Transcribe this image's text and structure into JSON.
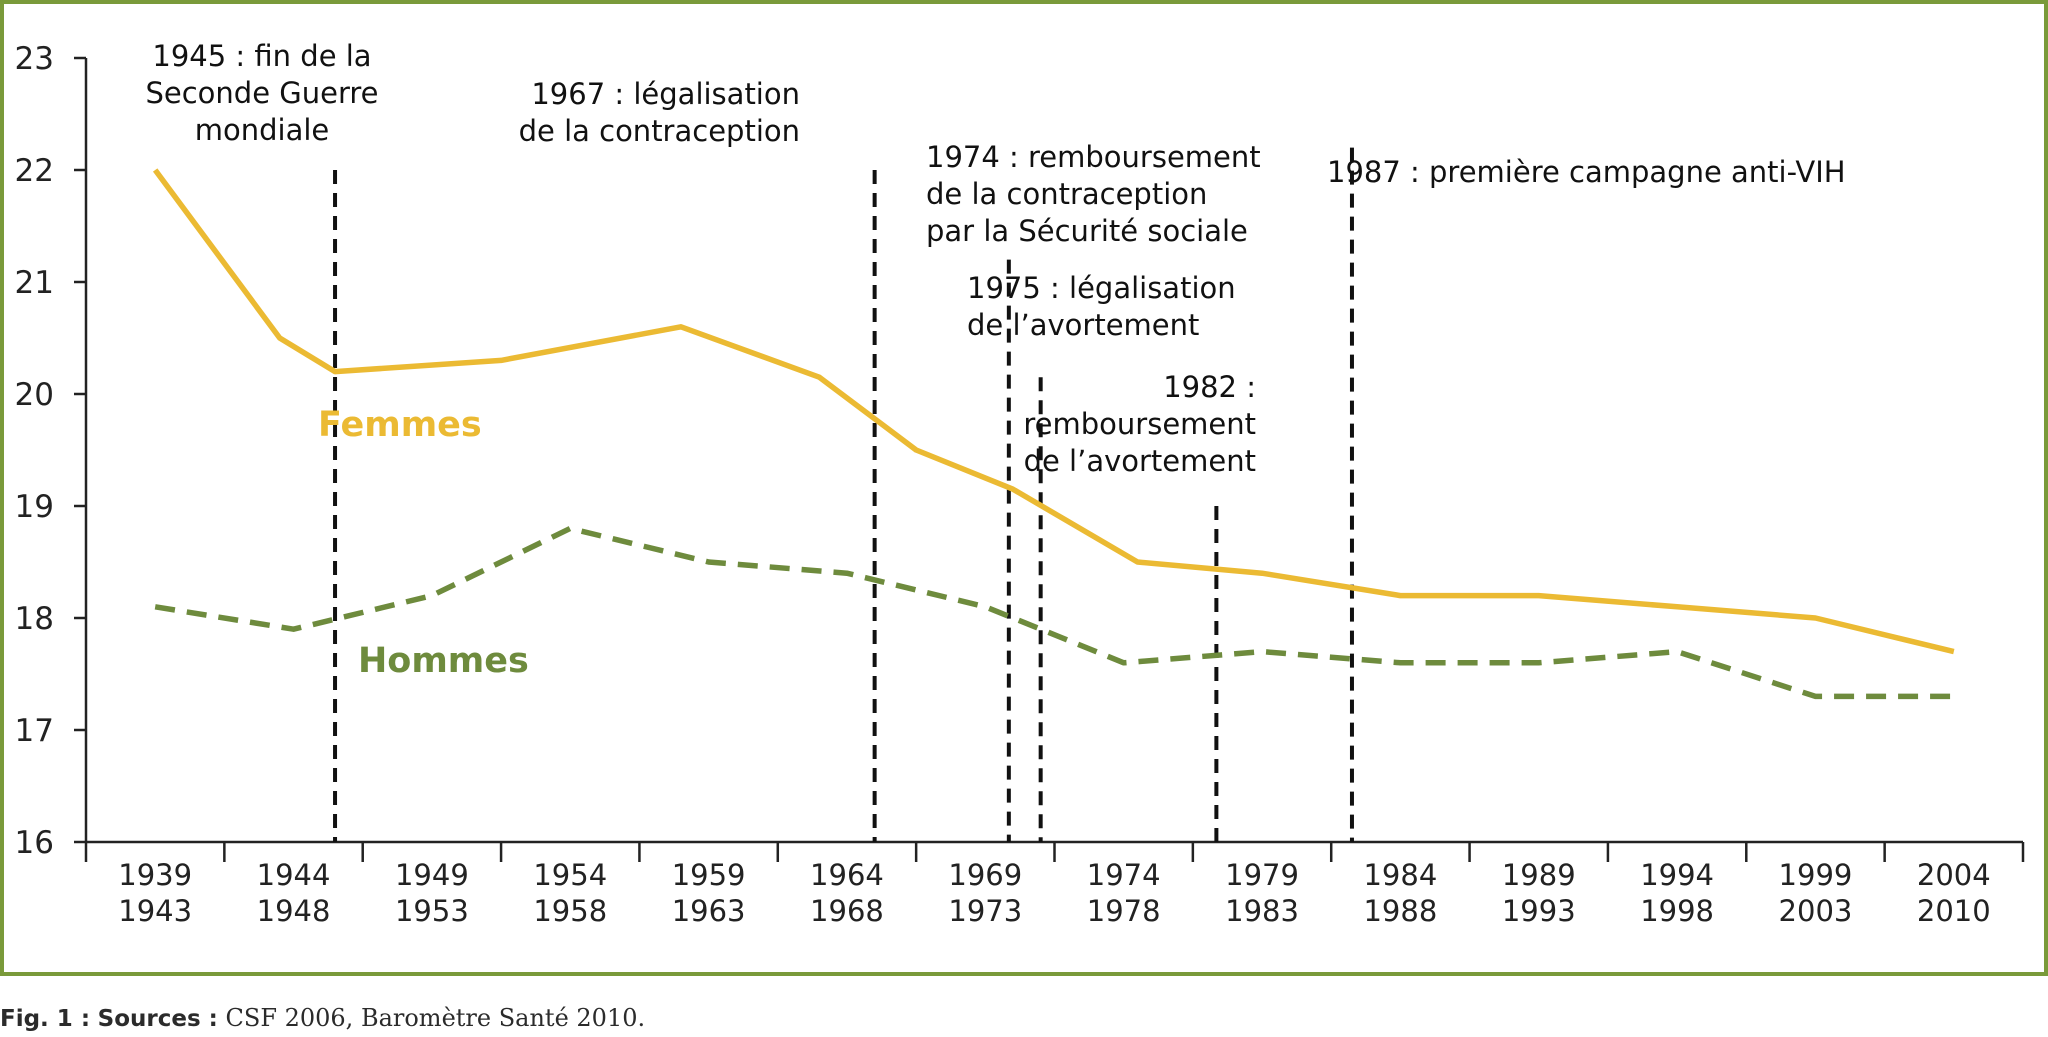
{
  "chart_data": {
    "type": "line",
    "categories": [
      [
        "1939",
        "1943"
      ],
      [
        "1944",
        "1948"
      ],
      [
        "1949",
        "1953"
      ],
      [
        "1954",
        "1958"
      ],
      [
        "1959",
        "1963"
      ],
      [
        "1964",
        "1968"
      ],
      [
        "1969",
        "1973"
      ],
      [
        "1974",
        "1978"
      ],
      [
        "1979",
        "1983"
      ],
      [
        "1984",
        "1988"
      ],
      [
        "1989",
        "1993"
      ],
      [
        "1994",
        "1998"
      ],
      [
        "1999",
        "2003"
      ],
      [
        "2004",
        "2010"
      ]
    ],
    "y_ticks": [
      "23",
      "22",
      "21",
      "20",
      "19",
      "18",
      "17",
      "16"
    ],
    "ylim": [
      16,
      23
    ],
    "series": [
      {
        "name": "Femmes",
        "color": "#EBBA33",
        "style": "solid",
        "x": [
          0,
          0.9,
          1.3,
          2.5,
          3.8,
          4.8,
          5.5,
          6.2,
          7.1,
          8.0,
          9.0,
          10.0,
          11.0,
          12.0,
          13.0
        ],
        "values": [
          22.0,
          20.5,
          20.2,
          20.3,
          20.6,
          20.15,
          19.5,
          19.15,
          18.5,
          18.4,
          18.2,
          18.2,
          18.1,
          18.0,
          17.7
        ]
      },
      {
        "name": "Hommes",
        "color": "#6E8B3D",
        "style": "dashed",
        "x": [
          0,
          1.0,
          2.0,
          3.0,
          4.0,
          5.0,
          6.0,
          7.0,
          8.0,
          9.0,
          10.0,
          11.0,
          12.0,
          13.0
        ],
        "values": [
          18.1,
          17.9,
          18.2,
          18.8,
          18.5,
          18.4,
          18.1,
          17.6,
          17.7,
          17.6,
          17.6,
          17.7,
          17.3,
          17.3
        ]
      }
    ],
    "events": [
      {
        "x": 1.3,
        "y_top": 22.0,
        "lines": [
          "1945 : fin de la",
          "Seconde Guerre",
          "mondiale"
        ],
        "align": "middle"
      },
      {
        "x": 5.2,
        "y_top": 22.0,
        "lines": [
          "1967 : légalisation",
          "de la contraception"
        ],
        "align": "end"
      },
      {
        "x": 6.17,
        "y_top": 21.2,
        "lines": [
          "1974 : remboursement",
          "de la contraception",
          "par la Sécurité sociale"
        ],
        "align": "start"
      },
      {
        "x": 6.4,
        "y_top": 20.15,
        "lines": [
          "1975 : légalisation",
          "de l’avortement"
        ],
        "align": "start"
      },
      {
        "x": 7.67,
        "y_top": 19.0,
        "lines": [
          "1982 :",
          "remboursement",
          "de l’avortement"
        ],
        "align": "end"
      },
      {
        "x": 8.65,
        "y_top": 22.2,
        "lines": [
          "1987 : première campagne anti-VIH"
        ],
        "align": "start"
      }
    ],
    "colors": {
      "frame": "#7A9A3A",
      "axis": "#222222",
      "vline": "#111111"
    }
  },
  "caption": {
    "fig": "Fig. 1 :",
    "sources": "Sources :",
    "text": "CSF 2006, Baromètre Santé 2010."
  }
}
